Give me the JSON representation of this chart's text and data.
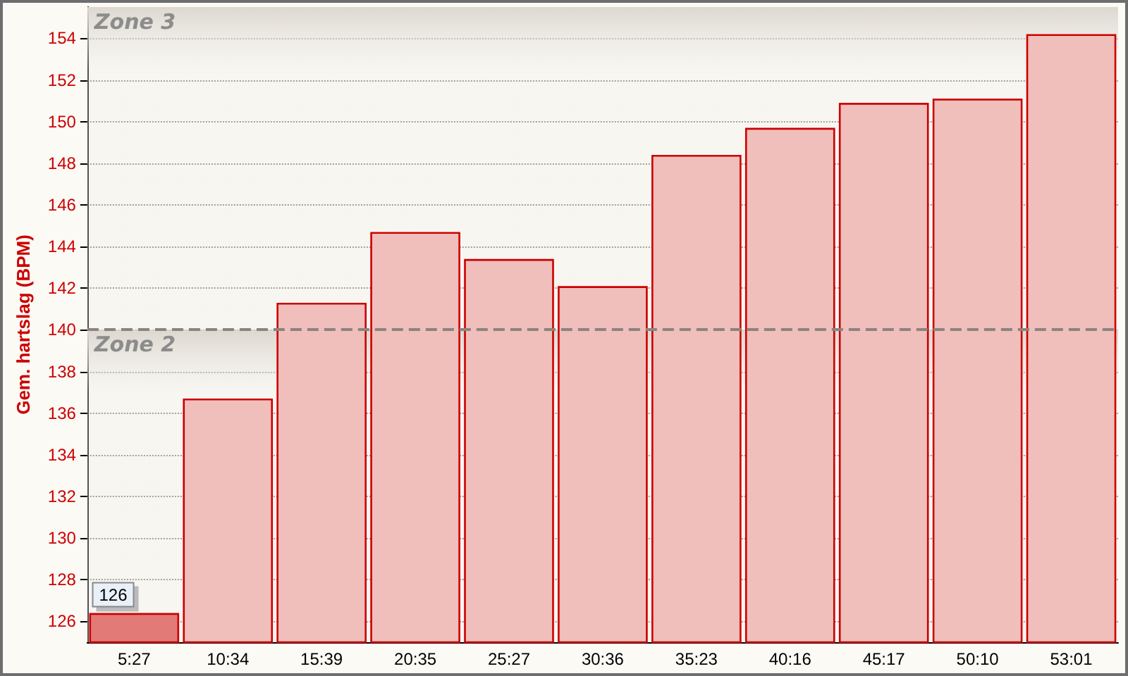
{
  "chart_data": {
    "type": "bar",
    "ylabel": "Gem. hartslag (BPM)",
    "categories": [
      "5:27",
      "10:34",
      "15:39",
      "20:35",
      "25:27",
      "30:36",
      "35:23",
      "40:16",
      "45:17",
      "50:10",
      "53:01"
    ],
    "values": [
      126.4,
      136.7,
      141.3,
      144.7,
      143.4,
      142.1,
      148.4,
      149.7,
      150.9,
      151.1,
      154.2
    ],
    "colors": [
      "#e27a78",
      "#f0bebb",
      "#f0bebb",
      "#f0bebb",
      "#f0bebb",
      "#f0bebb",
      "#f0bebb",
      "#f0bebb",
      "#f0bebb",
      "#f0bebb",
      "#f0bebb"
    ],
    "value_labels": [
      "126",
      null,
      null,
      null,
      null,
      null,
      null,
      null,
      null,
      null,
      null
    ],
    "ylim": [
      125,
      155.5
    ],
    "yticks": [
      126,
      128,
      130,
      132,
      134,
      136,
      138,
      140,
      142,
      144,
      146,
      148,
      150,
      152,
      154
    ],
    "grid": "y",
    "bands": [
      {
        "axis": "y",
        "from": 140,
        "to": 155.5,
        "label": "Zone 3",
        "color": "#dcd8d0"
      },
      {
        "axis": "y",
        "from": 125,
        "to": 140,
        "label": "Zone 2",
        "color": "#dcd8d0"
      }
    ],
    "ref_lines": [
      {
        "axis": "y",
        "value": 140,
        "color": "#8a8480",
        "line_style": "dashed"
      }
    ]
  }
}
